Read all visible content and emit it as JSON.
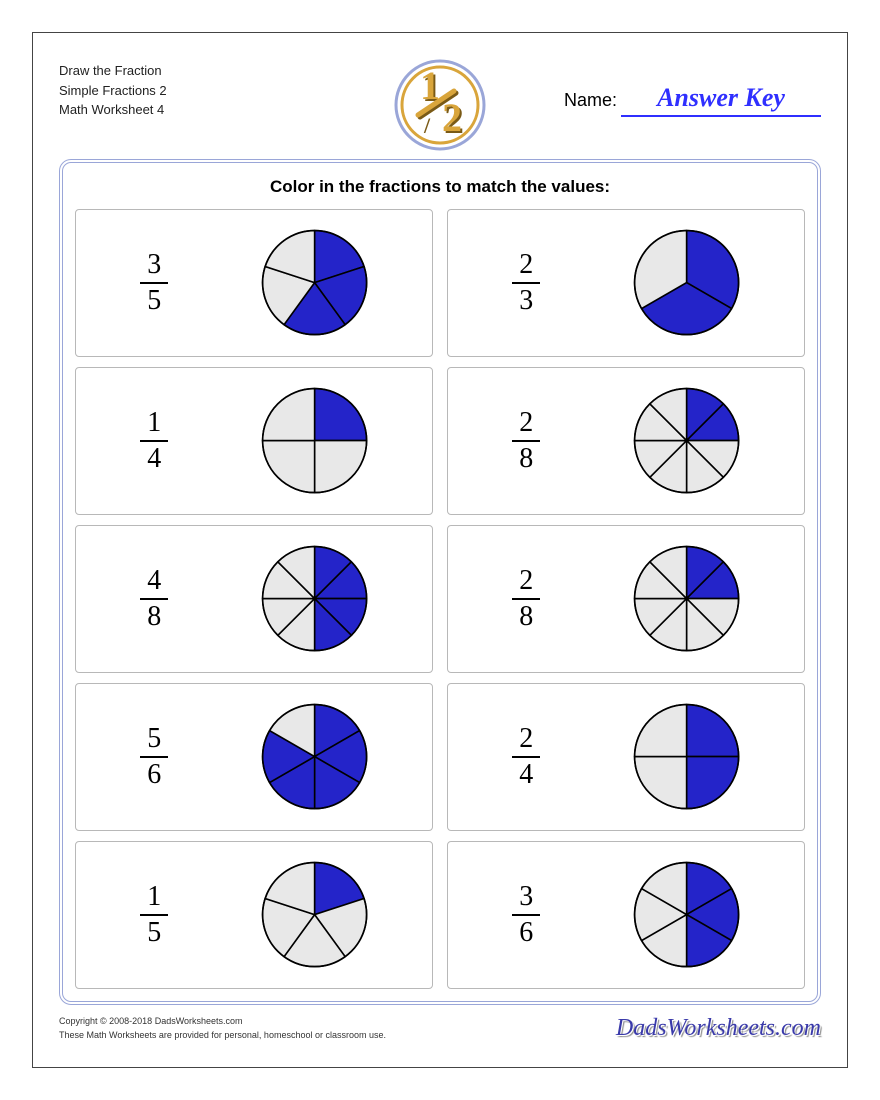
{
  "header": {
    "line1": "Draw the Fraction",
    "line2": "Simple Fractions 2",
    "line3": "Math Worksheet 4",
    "name_label": "Name:",
    "name_value": "Answer Key",
    "name_value_color": "#2f2fff",
    "logo_fraction": "½",
    "logo_fill": "#d9a53b",
    "logo_shadow": "#7a5a16",
    "logo_ring_outer": "#9aa6d8",
    "logo_ring_inner": "#d9a53b"
  },
  "instructions": "Color in the fractions to match the values:",
  "pie_style": {
    "radius": 52,
    "fill_color": "#2424c9",
    "empty_color": "#e8e8e8",
    "stroke_color": "#000000",
    "stroke_width": 1.6,
    "start_angle_deg": -90
  },
  "grid": {
    "columns": 2,
    "rows": 5,
    "cell_border": "#b8b8b8"
  },
  "problems": [
    {
      "numerator": 3,
      "denominator": 5,
      "filled": 3,
      "start_angle_deg": -90
    },
    {
      "numerator": 2,
      "denominator": 3,
      "filled": 2,
      "start_angle_deg": -90
    },
    {
      "numerator": 1,
      "denominator": 4,
      "filled": 1,
      "start_angle_deg": -90
    },
    {
      "numerator": 2,
      "denominator": 8,
      "filled": 2,
      "start_angle_deg": -90
    },
    {
      "numerator": 4,
      "denominator": 8,
      "filled": 4,
      "start_angle_deg": -90
    },
    {
      "numerator": 2,
      "denominator": 8,
      "filled": 2,
      "start_angle_deg": -90
    },
    {
      "numerator": 5,
      "denominator": 6,
      "filled": 5,
      "start_angle_deg": -90
    },
    {
      "numerator": 2,
      "denominator": 4,
      "filled": 2,
      "start_angle_deg": -90
    },
    {
      "numerator": 1,
      "denominator": 5,
      "filled": 1,
      "start_angle_deg": -90
    },
    {
      "numerator": 3,
      "denominator": 6,
      "filled": 3,
      "start_angle_deg": -90
    }
  ],
  "footer": {
    "copyright": "Copyright © 2008-2018 DadsWorksheets.com",
    "note": "These Math Worksheets are provided for personal, homeschool or classroom use.",
    "brand": "DadsWorksheets.com",
    "brand_color": "#3a3aaa"
  }
}
